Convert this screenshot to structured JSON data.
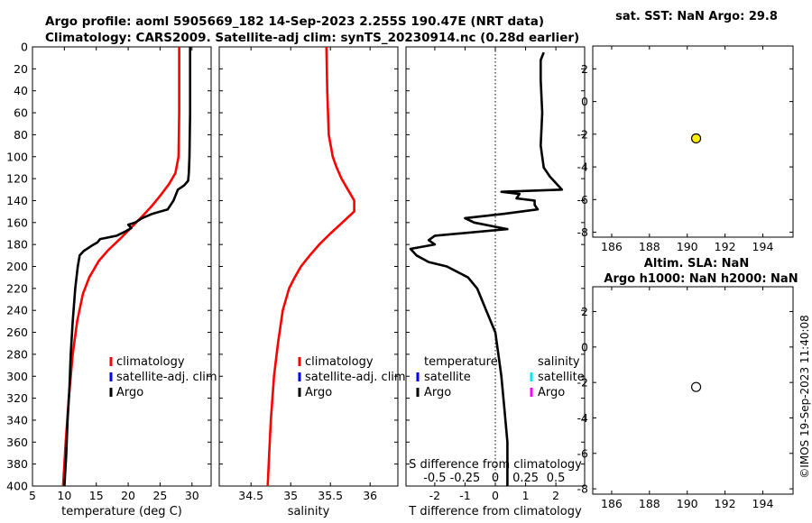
{
  "header": {
    "title_line1": "Argo profile: aoml 5905669_182 14-Sep-2023 2.255S 190.47E (NRT data)",
    "title_line2": "Climatology: CARS2009. Satellite-adj clim: synTS_20230914.nc (0.28d earlier)"
  },
  "stamp": "©IMOS 19-Sep-2023 11:40:08",
  "chart_data": [
    {
      "id": "temperature",
      "type": "line",
      "xlabel": "temperature (deg C)",
      "xlim": [
        5,
        33
      ],
      "xticks": [
        5,
        10,
        15,
        20,
        25,
        30
      ],
      "ylim": [
        0,
        400
      ],
      "yticks": [
        0,
        20,
        40,
        60,
        80,
        100,
        120,
        140,
        160,
        180,
        200,
        220,
        240,
        260,
        280,
        300,
        320,
        340,
        360,
        380,
        400
      ],
      "legend": [
        "climatology",
        "satellite-adj. clim",
        "Argo"
      ],
      "legend_colors": [
        "#ff0000",
        "#0000ff",
        "#000000"
      ],
      "series": [
        {
          "name": "climatology",
          "color": "#ff0000",
          "depth": [
            0,
            60,
            100,
            115,
            125,
            135,
            145,
            155,
            165,
            175,
            185,
            195,
            210,
            225,
            250,
            280,
            320,
            360,
            400
          ],
          "values": [
            28.0,
            28.0,
            27.9,
            27.4,
            26.4,
            25.1,
            23.7,
            22.1,
            20.4,
            18.7,
            16.9,
            15.4,
            13.9,
            12.9,
            12.0,
            11.3,
            10.7,
            10.2,
            9.8
          ]
        },
        {
          "name": "Argo",
          "color": "#000000",
          "depth": [
            0,
            60,
            100,
            115,
            122,
            126,
            130,
            140,
            148,
            152,
            156,
            160,
            162,
            165,
            168,
            172,
            175,
            178,
            181,
            186,
            190,
            200,
            220,
            250,
            280,
            310,
            340,
            370,
            400
          ],
          "values": [
            29.7,
            29.7,
            29.6,
            29.5,
            29.4,
            28.8,
            27.8,
            27.1,
            26.2,
            23.8,
            22.2,
            21.1,
            20.0,
            20.5,
            19.6,
            18.2,
            15.6,
            15.2,
            14.3,
            13.0,
            12.4,
            12.1,
            11.7,
            11.3,
            11.0,
            10.8,
            10.5,
            10.3,
            10.0
          ]
        }
      ]
    },
    {
      "id": "salinity",
      "type": "line",
      "xlabel": "salinity",
      "xlim": [
        34.1,
        36.35
      ],
      "xticks": [
        34.5,
        35,
        35.5,
        36
      ],
      "ylim": [
        0,
        400
      ],
      "legend": [
        "climatology",
        "satellite-adj. clim",
        "Argo"
      ],
      "legend_colors": [
        "#ff0000",
        "#0000ff",
        "#000000"
      ],
      "series": [
        {
          "name": "climatology",
          "color": "#ff0000",
          "depth": [
            0,
            40,
            80,
            100,
            110,
            120,
            130,
            140,
            150,
            160,
            170,
            180,
            190,
            200,
            210,
            220,
            240,
            270,
            300,
            340,
            370,
            400
          ],
          "values": [
            35.45,
            35.46,
            35.48,
            35.53,
            35.58,
            35.64,
            35.72,
            35.8,
            35.8,
            35.65,
            35.5,
            35.36,
            35.24,
            35.13,
            35.05,
            34.98,
            34.9,
            34.84,
            34.79,
            34.75,
            34.73,
            34.71
          ]
        }
      ]
    },
    {
      "id": "t_difference",
      "type": "line",
      "xlabel": "T difference from climatology",
      "xlim": [
        -2.95,
        2.95
      ],
      "xticks": [
        -2,
        -1,
        0,
        1,
        2
      ],
      "top_label": "S difference from climatology",
      "top_ticks": [
        "-0.5",
        "-0.25",
        "0",
        "0.25",
        "0.5"
      ],
      "top_ticks_x": [
        -2,
        -1,
        0,
        1,
        2
      ],
      "ylim": [
        0,
        400
      ],
      "legend_temperature": {
        "title": "temperature",
        "items": [
          "satellite",
          "Argo"
        ],
        "colors": [
          "#0000ff",
          "#000000"
        ]
      },
      "legend_salinity": {
        "title": "salinity",
        "items": [
          "satellite",
          "Argo"
        ],
        "colors": [
          "#00e5ff",
          "#ff00ff"
        ]
      },
      "series": [
        {
          "name": "T difference",
          "color": "#000000",
          "depth": [
            5,
            12,
            30,
            60,
            90,
            110,
            118,
            124,
            130,
            132,
            134,
            138,
            140,
            144,
            148,
            152,
            156,
            160,
            166,
            172,
            176,
            180,
            184,
            190,
            196,
            200,
            210,
            220,
            240,
            260,
            280,
            300,
            330,
            360,
            400
          ],
          "values": [
            1.6,
            1.5,
            1.5,
            1.55,
            1.5,
            1.6,
            1.8,
            2.0,
            2.2,
            0.2,
            0.8,
            0.7,
            1.3,
            1.3,
            1.4,
            0.3,
            -1.0,
            -0.7,
            0.4,
            -2.0,
            -2.2,
            -2.0,
            -2.8,
            -2.6,
            -2.2,
            -1.6,
            -0.9,
            -0.6,
            -0.3,
            0.0,
            0.1,
            0.2,
            0.3,
            0.4,
            0.4
          ]
        }
      ]
    },
    {
      "id": "sst_panel",
      "type": "scatter",
      "title": "sat. SST: NaN Argo: 29.8",
      "xlim": [
        185,
        195.6
      ],
      "xticks": [
        186,
        188,
        190,
        192,
        194
      ],
      "ylim": [
        -8.3,
        3.4
      ],
      "yticks": [
        2,
        0,
        -2,
        -4,
        -6,
        -8
      ],
      "points": [
        {
          "x": 190.47,
          "y": -2.255,
          "fill": "#ffee00"
        }
      ]
    },
    {
      "id": "sla_panel",
      "type": "scatter",
      "title_line1": "Altim. SLA: NaN",
      "title_line2": "Argo h1000: NaN h2000: NaN",
      "xlim": [
        185,
        195.6
      ],
      "xticks": [
        186,
        188,
        190,
        192,
        194
      ],
      "ylim": [
        -8.3,
        3.4
      ],
      "yticks": [
        2,
        0,
        -2,
        -4,
        -6,
        -8
      ],
      "points": [
        {
          "x": 190.47,
          "y": -2.255,
          "fill": "#ffffff"
        }
      ]
    }
  ]
}
